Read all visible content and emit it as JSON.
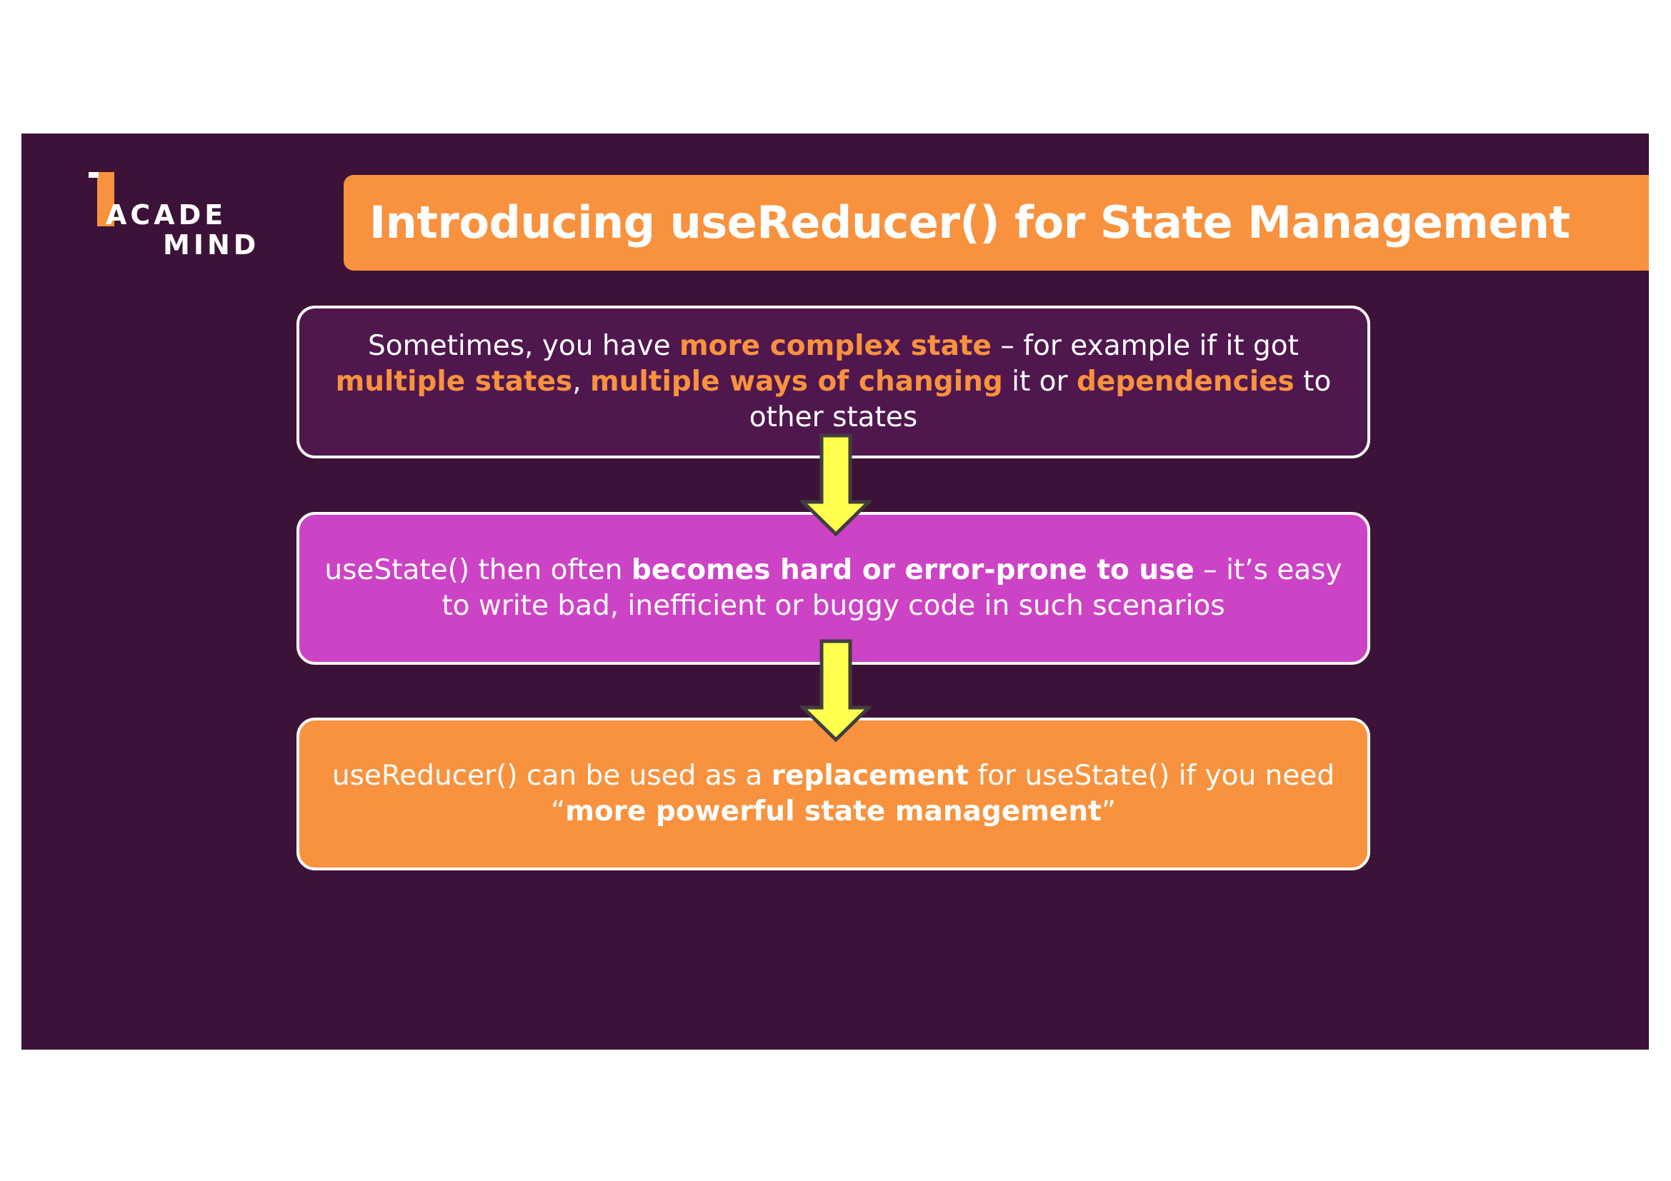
{
  "logo": {
    "line1": "ACADE",
    "line2": "MIND"
  },
  "title": "Introducing useReducer() for State Management",
  "box1": {
    "t1": "Sometimes, you have ",
    "h1": "more complex state",
    "t2": " – for example if it got ",
    "h2": "multiple states",
    "t3": ", ",
    "h3": "multiple ways of changing",
    "t4": " it or ",
    "h4": "dependencies",
    "t5": " to other states"
  },
  "box2": {
    "t1": "useState() then often ",
    "b1": "becomes hard or error-prone to use",
    "t2": " – it’s easy to write bad, inefficient or buggy code in such scenarios"
  },
  "box3": {
    "t1": "useReducer() can be used as a ",
    "b1": "replacement",
    "t2": " for useState() if you need “",
    "b2": "more powerful state management",
    "t3": "”"
  },
  "colors": {
    "background": "#3d1238",
    "accent_orange": "#f8923e",
    "box1_fill": "#50174f",
    "box2_fill": "#cd43c5",
    "arrow_fill": "#ffff4d"
  }
}
